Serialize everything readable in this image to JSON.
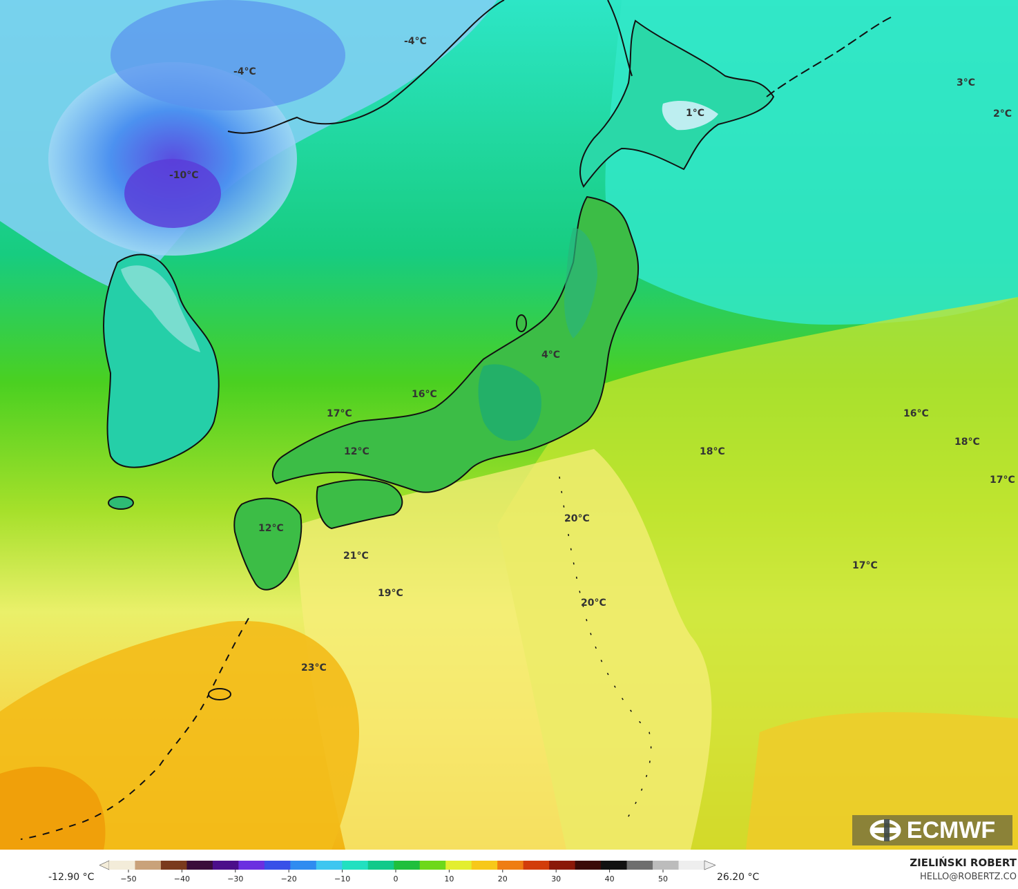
{
  "map": {
    "temperature_labels": [
      {
        "text": "-4°C"
      },
      {
        "text": "-4°C"
      },
      {
        "text": "-10°C"
      },
      {
        "text": "1°C"
      },
      {
        "text": "3°C"
      },
      {
        "text": "2°C"
      },
      {
        "text": "4°C"
      },
      {
        "text": "16°C"
      },
      {
        "text": "17°C"
      },
      {
        "text": "12°C"
      },
      {
        "text": "12°C"
      },
      {
        "text": "21°C"
      },
      {
        "text": "19°C"
      },
      {
        "text": "20°C"
      },
      {
        "text": "20°C"
      },
      {
        "text": "18°C"
      },
      {
        "text": "16°C"
      },
      {
        "text": "18°C"
      },
      {
        "text": "17°C"
      },
      {
        "text": "17°C"
      },
      {
        "text": "23°C"
      }
    ]
  },
  "logo": {
    "text": "ECMWF"
  },
  "scale": {
    "min_label": "-12.90 °C",
    "max_label": "26.20 °C",
    "ticks": [
      "−50",
      "−40",
      "−30",
      "−20",
      "−10",
      "0",
      "10",
      "20",
      "30",
      "40",
      "50"
    ],
    "colors": [
      "#f3ecd9",
      "#c9a27a",
      "#7a3a1d",
      "#3a0d3a",
      "#4b0f8a",
      "#6b2fe0",
      "#3850e8",
      "#2f8cf0",
      "#3ec6f0",
      "#22e0c0",
      "#12c98a",
      "#1fbf3c",
      "#6ed81a",
      "#e3ee2f",
      "#f7c81a",
      "#ef7d12",
      "#d23c0a",
      "#8a1808",
      "#3a0a08",
      "#111111",
      "#6e6e6e",
      "#bcbcbc",
      "#eeeeee"
    ]
  },
  "author": {
    "name": "ZIELIŃSKI ROBERT",
    "email": "HELLO@ROBERTZ.CO"
  },
  "icons": {
    "logo": "ecmwf-logo-icon"
  }
}
